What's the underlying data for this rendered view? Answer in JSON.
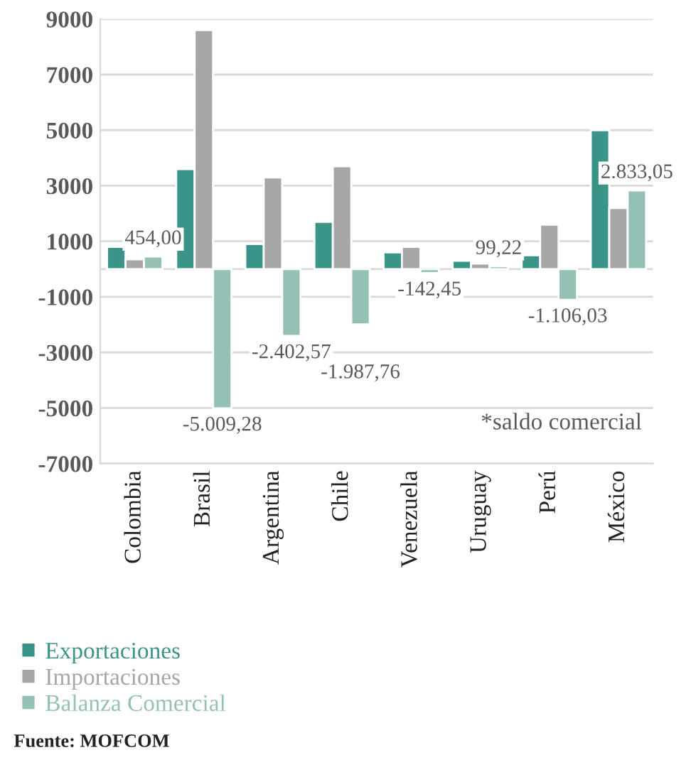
{
  "chart_data": {
    "type": "bar",
    "categories": [
      "Colombia",
      "Brasil",
      "Argentina",
      "Chile",
      "Venezuela",
      "Uruguay",
      "Perú",
      "México"
    ],
    "series": [
      {
        "name": "Exportaciones",
        "color": "#3a9488",
        "values": [
          800,
          3600,
          900,
          1700,
          600,
          300,
          500,
          5000
        ]
      },
      {
        "name": "Importaciones",
        "color": "#a6a6a6",
        "values": [
          350,
          8600,
          3300,
          3700,
          800,
          200,
          1600,
          2200
        ]
      },
      {
        "name": "Balanza Comercial",
        "color": "#94c0b5",
        "values": [
          454.0,
          -5009.28,
          -2402.57,
          -1987.76,
          -142.45,
          99.22,
          -1106.03,
          2833.05
        ],
        "value_labels": [
          "454,00",
          "-5.009,28",
          "-2.402,57",
          "-1.987,76",
          "-142,45",
          "99,22",
          "-1.106,03",
          "2.833,05"
        ]
      }
    ],
    "ylim": [
      -7000,
      9000
    ],
    "yticks": [
      -7000,
      -5000,
      -3000,
      -1000,
      1000,
      3000,
      5000,
      7000,
      9000
    ],
    "grid": "y",
    "legend": "bottom left",
    "annotations": [
      "*saldo comercial",
      "Fuente: MOFCOM"
    ]
  }
}
